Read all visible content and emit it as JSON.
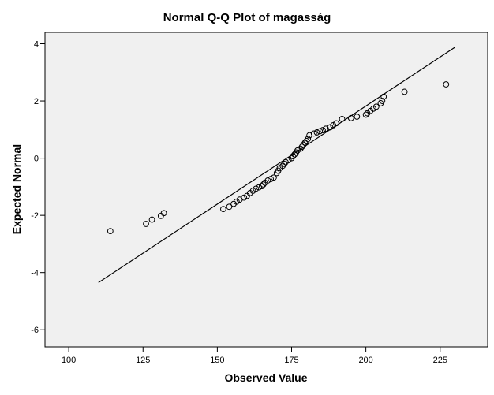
{
  "chart_data": {
    "type": "scatter",
    "title": "Normal Q-Q Plot of magasság",
    "xlabel": "Observed Value",
    "ylabel": "Expected Normal",
    "xlim": [
      92,
      241
    ],
    "ylim": [
      -6.6,
      4.4
    ],
    "x_ticks": [
      100,
      125,
      150,
      175,
      200,
      225
    ],
    "y_ticks": [
      4,
      2,
      0,
      -2,
      -4,
      -6
    ],
    "grid": false,
    "legend": "none",
    "colors": {
      "plot_background": "#f0f0f0",
      "marker_stroke": "#000000",
      "line": "#000000"
    },
    "reference_line": {
      "x": [
        110,
        230
      ],
      "y": [
        -4.35,
        3.88
      ]
    },
    "series": [
      {
        "points": [
          [
            114,
            -2.55
          ],
          [
            126,
            -2.3
          ],
          [
            128,
            -2.15
          ],
          [
            131,
            -2.02
          ],
          [
            132,
            -1.92
          ],
          [
            152,
            -1.78
          ],
          [
            154,
            -1.7
          ],
          [
            155.5,
            -1.6
          ],
          [
            156.5,
            -1.52
          ],
          [
            157.5,
            -1.45
          ],
          [
            159,
            -1.38
          ],
          [
            160,
            -1.32
          ],
          [
            161,
            -1.22
          ],
          [
            162,
            -1.14
          ],
          [
            163,
            -1.07
          ],
          [
            164,
            -1.02
          ],
          [
            165,
            -0.98
          ],
          [
            165.5,
            -0.92
          ],
          [
            166,
            -0.86
          ],
          [
            167,
            -0.78
          ],
          [
            168,
            -0.73
          ],
          [
            169,
            -0.68
          ],
          [
            170,
            -0.52
          ],
          [
            170.5,
            -0.44
          ],
          [
            171,
            -0.35
          ],
          [
            172,
            -0.27
          ],
          [
            172.5,
            -0.2
          ],
          [
            173,
            -0.14
          ],
          [
            174,
            -0.07
          ],
          [
            175,
            0.0
          ],
          [
            175.5,
            0.07
          ],
          [
            176,
            0.13
          ],
          [
            176.5,
            0.2
          ],
          [
            177,
            0.27
          ],
          [
            178,
            0.33
          ],
          [
            178.5,
            0.4
          ],
          [
            179,
            0.47
          ],
          [
            179.5,
            0.54
          ],
          [
            180,
            0.6
          ],
          [
            180.5,
            0.67
          ],
          [
            181,
            0.8
          ],
          [
            182.5,
            0.86
          ],
          [
            183.5,
            0.9
          ],
          [
            184.5,
            0.94
          ],
          [
            185.5,
            0.98
          ],
          [
            186.5,
            1.03
          ],
          [
            188,
            1.08
          ],
          [
            189,
            1.15
          ],
          [
            190,
            1.22
          ],
          [
            192,
            1.37
          ],
          [
            195,
            1.4
          ],
          [
            197,
            1.45
          ],
          [
            200,
            1.52
          ],
          [
            200.5,
            1.57
          ],
          [
            201.5,
            1.65
          ],
          [
            202.5,
            1.73
          ],
          [
            203.5,
            1.8
          ],
          [
            205,
            1.92
          ],
          [
            205.5,
            2.0
          ],
          [
            206,
            2.15
          ],
          [
            213,
            2.32
          ],
          [
            227,
            2.58
          ]
        ]
      }
    ]
  }
}
